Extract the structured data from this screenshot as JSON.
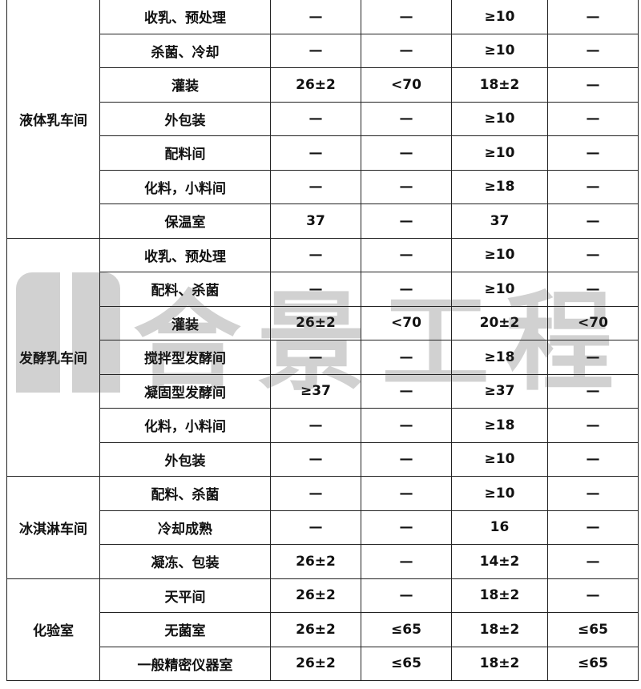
{
  "groups": [
    {
      "name": "液体乳车间",
      "rows": [
        [
          "收乳、预处理",
          "—",
          "—",
          "≥10",
          "—"
        ],
        [
          "杀菌、冷却",
          "—",
          "—",
          "≥10",
          "—"
        ],
        [
          "灌装",
          "26±2",
          "<70",
          "18±2",
          "—"
        ],
        [
          "外包装",
          "—",
          "—",
          "≥10",
          "—"
        ],
        [
          "配料间",
          "—",
          "—",
          "≥10",
          "—"
        ],
        [
          "化料，小料间",
          "—",
          "—",
          "≥18",
          "—"
        ],
        [
          "保温室",
          "37",
          "—",
          "37",
          "—"
        ]
      ]
    },
    {
      "name": "发酵乳车间",
      "rows": [
        [
          "收乳、预处理",
          "—",
          "—",
          "≥10",
          "—"
        ],
        [
          "配料、杀菌",
          "—",
          "—",
          "≥10",
          "—"
        ],
        [
          "灌装",
          "26±2",
          "<70",
          "20±2",
          "<70"
        ],
        [
          "搅拌型发酵间",
          "—",
          "—",
          "≥18",
          "—"
        ],
        [
          "凝固型发酵间",
          "≥37",
          "—",
          "≥37",
          "—"
        ],
        [
          "化料，小料间",
          "—",
          "—",
          "≥18",
          "—"
        ],
        [
          "外包装",
          "—",
          "—",
          "≥10",
          "—"
        ]
      ]
    },
    {
      "name": "冰淇淋车间",
      "rows": [
        [
          "配料、杀菌",
          "—",
          "—",
          "≥10",
          "—"
        ],
        [
          "冷却成熟",
          "—",
          "—",
          "16",
          "—"
        ],
        [
          "凝冻、包装",
          "26±2",
          "—",
          "14±2",
          "—"
        ]
      ]
    },
    {
      "name": "化验室",
      "rows": [
        [
          "天平间",
          "26±2",
          "—",
          "18±2",
          "—"
        ],
        [
          "无菌室",
          "26±2",
          "≤65",
          "18±2",
          "≤65"
        ],
        [
          "一般精密仪器室",
          "26±2",
          "≤65",
          "18±2",
          "≤65"
        ]
      ]
    }
  ],
  "watermark": "合景工程"
}
